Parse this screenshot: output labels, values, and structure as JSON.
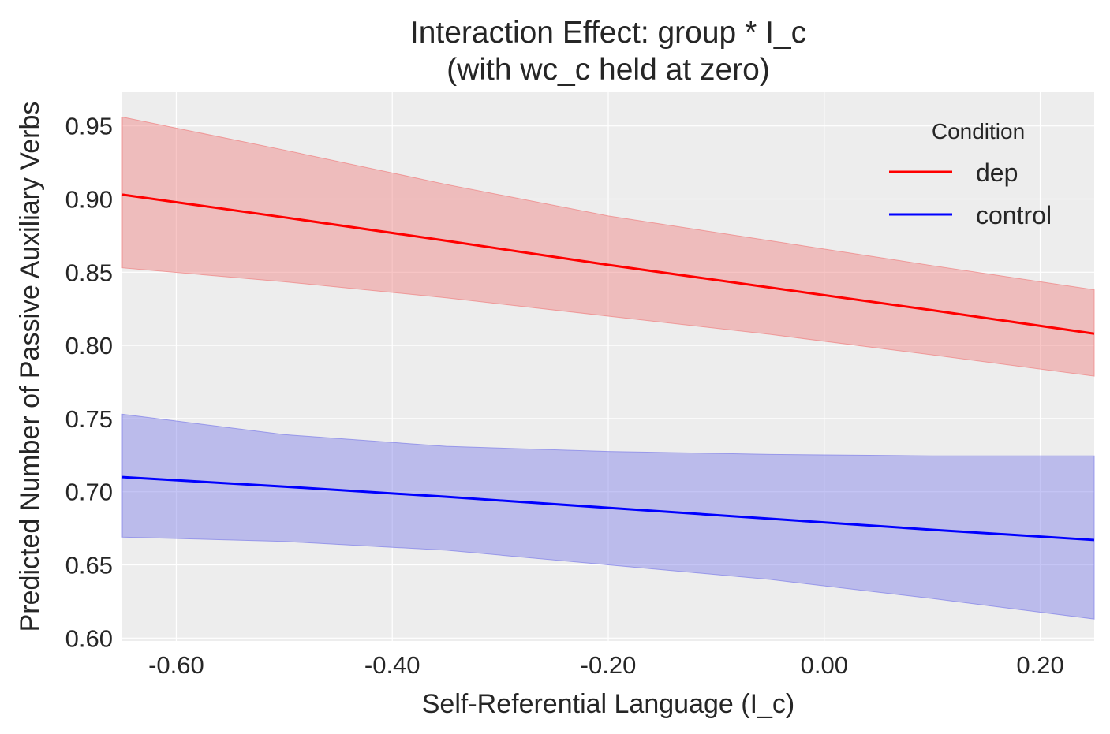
{
  "chart_data": {
    "type": "line",
    "title": "Interaction Effect: group * I_c",
    "subtitle": "(with wc_c held at zero)",
    "xlabel": "Self-Referential Language (I_c)",
    "ylabel": "Predicted Number of Passive Auxiliary Verbs",
    "xlim": [
      -0.65,
      0.25
    ],
    "ylim": [
      0.598,
      0.973
    ],
    "x_ticks": [
      -0.6,
      -0.4,
      -0.2,
      0.0,
      0.2
    ],
    "x_tick_labels": [
      "-0.60",
      "-0.40",
      "-0.20",
      "0.00",
      "0.20"
    ],
    "y_ticks": [
      0.6,
      0.65,
      0.7,
      0.75,
      0.8,
      0.85,
      0.9,
      0.95
    ],
    "y_tick_labels": [
      "0.60",
      "0.65",
      "0.70",
      "0.75",
      "0.80",
      "0.85",
      "0.90",
      "0.95"
    ],
    "grid": true,
    "legend": {
      "title": "Condition",
      "placement": "top-right"
    },
    "series": [
      {
        "name": "dep",
        "color": "#ff0000",
        "band_color": "#f08080",
        "x": [
          -0.65,
          -0.5,
          -0.35,
          -0.2,
          -0.05,
          0.1,
          0.25
        ],
        "y": [
          0.903,
          0.8875,
          0.8715,
          0.855,
          0.8395,
          0.824,
          0.808
        ],
        "lower": [
          0.853,
          0.8435,
          0.8325,
          0.82,
          0.8075,
          0.7935,
          0.779
        ],
        "upper": [
          0.956,
          0.9335,
          0.91,
          0.8885,
          0.8715,
          0.8545,
          0.838
        ]
      },
      {
        "name": "control",
        "color": "#0000ff",
        "band_color": "#7f7fe8",
        "x": [
          -0.65,
          -0.5,
          -0.35,
          -0.2,
          -0.05,
          0.1,
          0.25
        ],
        "y": [
          0.71,
          0.7035,
          0.6965,
          0.689,
          0.6815,
          0.674,
          0.667
        ],
        "lower": [
          0.669,
          0.666,
          0.66,
          0.65,
          0.64,
          0.627,
          0.613
        ],
        "upper": [
          0.753,
          0.739,
          0.731,
          0.7275,
          0.7255,
          0.7245,
          0.7245
        ]
      }
    ]
  }
}
